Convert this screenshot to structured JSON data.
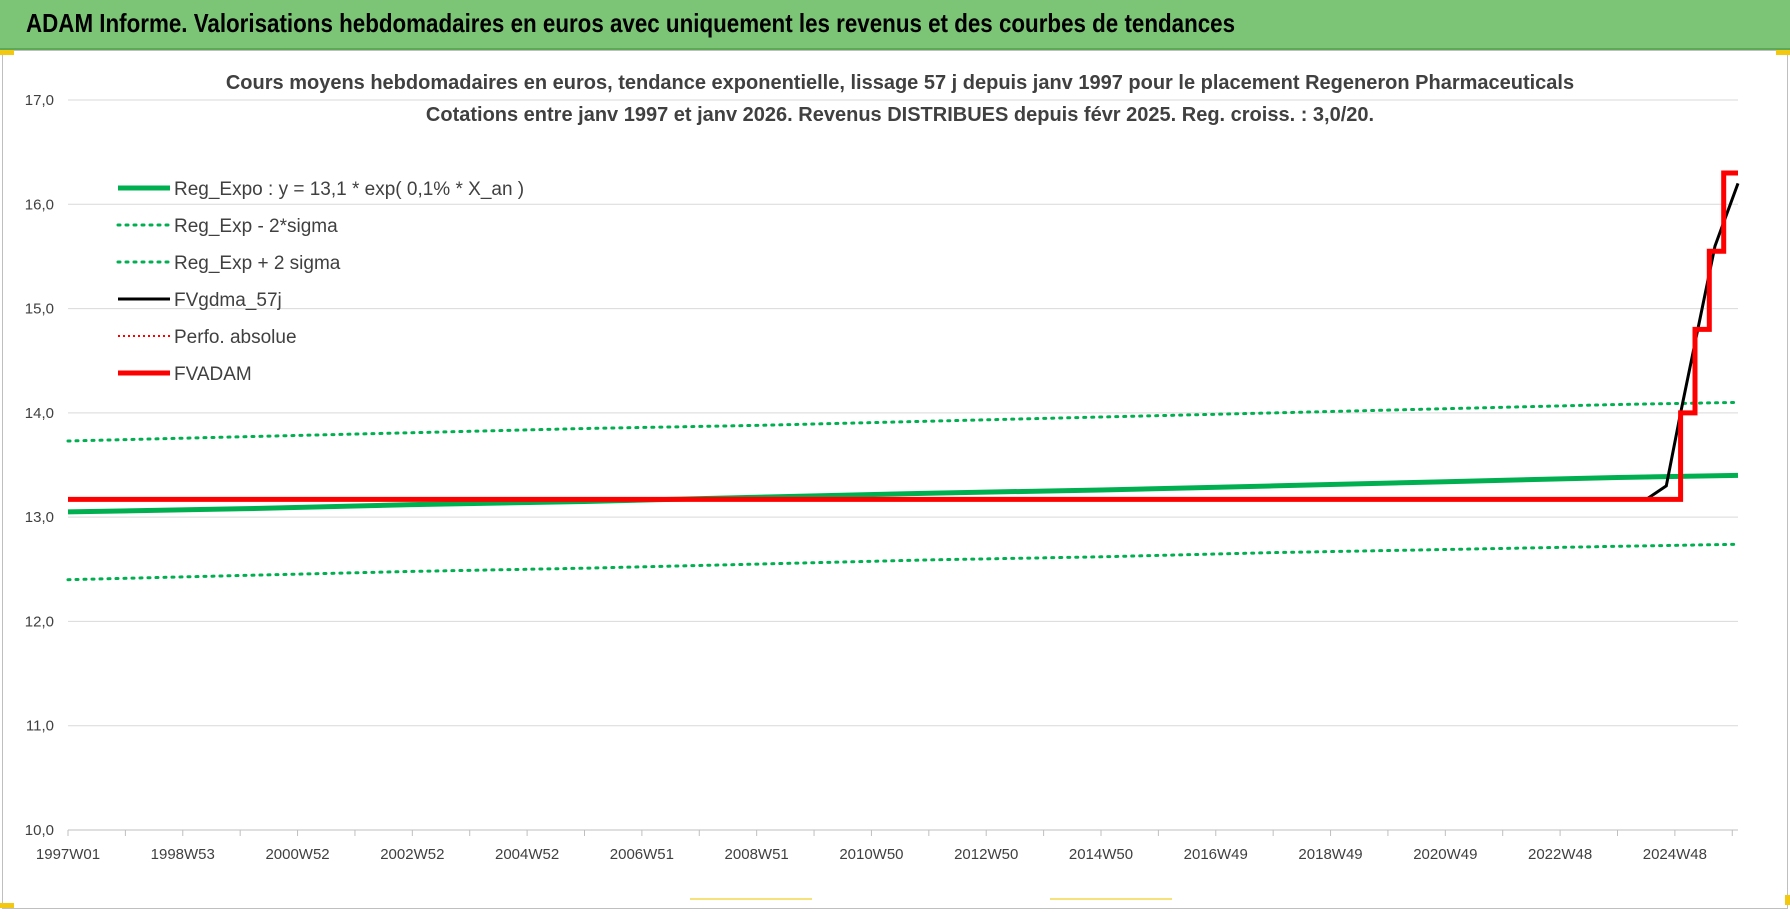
{
  "header": {
    "title": "ADAM Informe. Valorisations hebdomadaires en euros avec uniquement les revenus et des courbes de tendances"
  },
  "colors": {
    "banner": "#7cc576",
    "green": "#00b050",
    "red": "#ff0000",
    "black": "#000000",
    "grid": "#d9d9d9",
    "text": "#404040"
  },
  "chart_data": {
    "type": "line",
    "title_line1": "Cours moyens hebdomadaires en euros, tendance exponentielle, lissage 57 j depuis janv 1997  pour le placement Regeneron Pharmaceuticals",
    "title_line2": "Cotations entre janv 1997 et janv 2026. Revenus DISTRIBUES depuis févr 2025. Reg. croiss. : 3,0/20.",
    "xlabel": "",
    "ylabel": "",
    "ylim": [
      10,
      17
    ],
    "xlim": [
      1997.0,
      2026.1
    ],
    "y_ticks": [
      "10,0",
      "11,0",
      "12,0",
      "13,0",
      "14,0",
      "15,0",
      "16,0",
      "17,0"
    ],
    "x_tick_labels": [
      "1997W01",
      "1998W53",
      "2000W52",
      "2002W52",
      "2004W52",
      "2006W51",
      "2008W51",
      "2010W50",
      "2012W50",
      "2014W50",
      "2016W49",
      "2018W49",
      "2020W49",
      "2022W48",
      "2024W48"
    ],
    "x_tick_values": [
      1997.0,
      1999.0,
      2001.0,
      2003.0,
      2005.0,
      2007.0,
      2009.0,
      2011.0,
      2013.0,
      2015.0,
      2017.0,
      2019.0,
      2021.0,
      2023.0,
      2025.0
    ],
    "grid": true,
    "legend_position": "top-left",
    "series": [
      {
        "name": "Reg_Expo : y = 13,1 * exp( 0,1% *  X_an )",
        "style": "solid-thick",
        "color": "#00b050",
        "x": [
          1997.0,
          2000.0,
          2003.0,
          2006.0,
          2009.0,
          2012.0,
          2015.0,
          2018.0,
          2021.0,
          2024.0,
          2026.1
        ],
        "y": [
          13.05,
          13.08,
          13.12,
          13.15,
          13.19,
          13.23,
          13.26,
          13.3,
          13.34,
          13.38,
          13.4
        ]
      },
      {
        "name": "Reg_Exp - 2*sigma",
        "style": "dotted",
        "color": "#00b050",
        "x": [
          1997.0,
          2000.0,
          2003.0,
          2006.0,
          2009.0,
          2012.0,
          2015.0,
          2018.0,
          2021.0,
          2024.0,
          2026.1
        ],
        "y": [
          12.4,
          12.44,
          12.48,
          12.51,
          12.55,
          12.59,
          12.62,
          12.66,
          12.69,
          12.72,
          12.74
        ]
      },
      {
        "name": "Reg_Exp + 2 sigma",
        "style": "dotted",
        "color": "#00b050",
        "x": [
          1997.0,
          2000.0,
          2003.0,
          2006.0,
          2009.0,
          2012.0,
          2015.0,
          2018.0,
          2021.0,
          2024.0,
          2026.1
        ],
        "y": [
          13.73,
          13.77,
          13.81,
          13.85,
          13.88,
          13.92,
          13.96,
          14.0,
          14.04,
          14.08,
          14.1
        ]
      },
      {
        "name": "FVgdma_57j",
        "style": "solid",
        "color": "#000000",
        "x": [
          1997.0,
          2024.5,
          2024.85,
          2025.1,
          2025.4,
          2025.7,
          2026.1
        ],
        "y": [
          13.17,
          13.17,
          13.3,
          14.0,
          14.8,
          15.6,
          16.2
        ]
      },
      {
        "name": "Perfo. absolue",
        "style": "dotted-thin",
        "color": "#ff0000",
        "x": [],
        "y": []
      },
      {
        "name": "FVADAM",
        "style": "solid-thick",
        "color": "#ff0000",
        "x": [
          1997.0,
          2025.1,
          2025.1,
          2025.35,
          2025.35,
          2025.6,
          2025.6,
          2025.85,
          2025.85,
          2026.1
        ],
        "y": [
          13.17,
          13.17,
          14.0,
          14.0,
          14.8,
          14.8,
          15.55,
          15.55,
          16.3,
          16.3
        ]
      }
    ]
  }
}
